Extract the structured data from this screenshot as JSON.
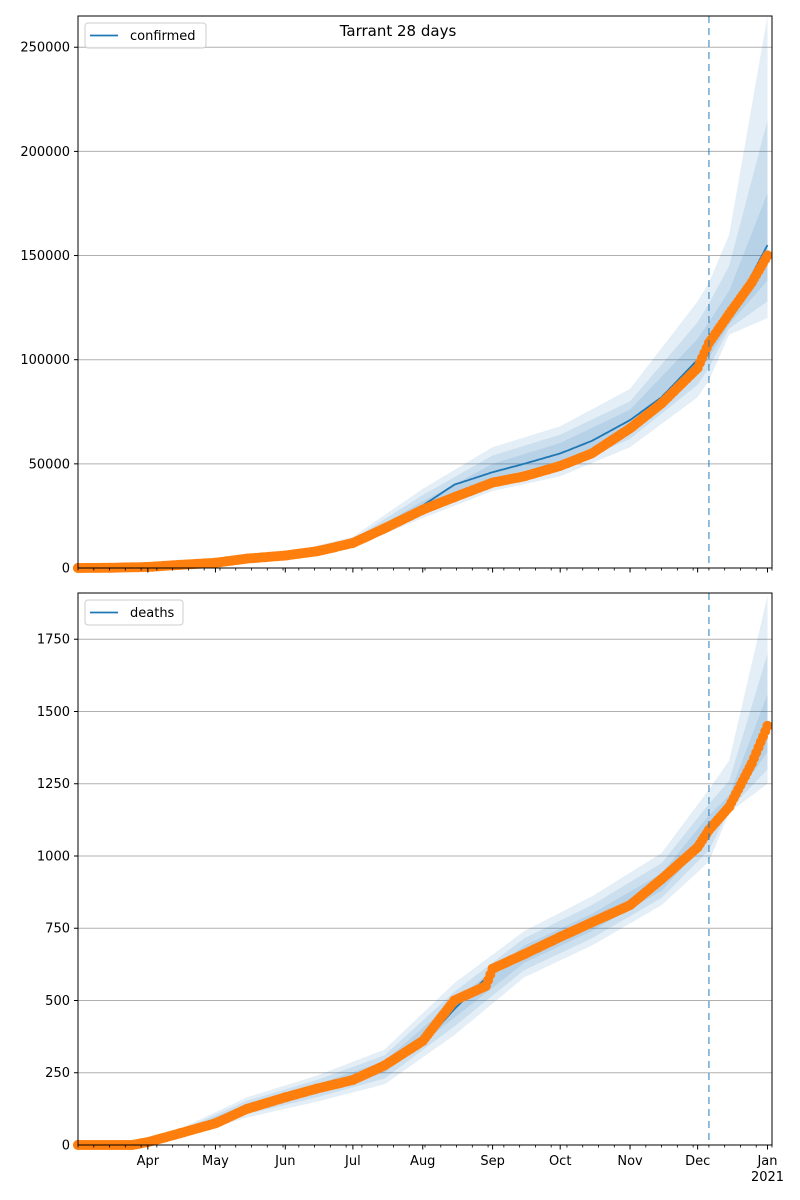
{
  "chart_data": [
    {
      "type": "line",
      "title": "Tarrant 28 days",
      "legend": {
        "placement": "top-left",
        "entries": [
          "confirmed"
        ]
      },
      "ylim": [
        0,
        265000
      ],
      "yticks": [
        0,
        50000,
        100000,
        150000,
        200000,
        250000
      ],
      "ytick_labels": [
        "0",
        "50000",
        "100000",
        "150000",
        "200000",
        "250000"
      ],
      "grid": "horizontal",
      "forecast_start": "2020-12-06",
      "series": [
        {
          "name": "confirmed",
          "role": "model-median-line",
          "color": "#1f77b4",
          "x": [
            "2020-03-01",
            "2020-04-01",
            "2020-05-01",
            "2020-06-01",
            "2020-07-01",
            "2020-07-15",
            "2020-08-01",
            "2020-08-15",
            "2020-09-01",
            "2020-09-15",
            "2020-10-01",
            "2020-10-15",
            "2020-11-01",
            "2020-11-15",
            "2020-12-01",
            "2020-12-06",
            "2020-12-15",
            "2021-01-01"
          ],
          "y": [
            0,
            500,
            2500,
            6000,
            12000,
            20000,
            30000,
            40000,
            46000,
            50000,
            55000,
            61000,
            71000,
            82000,
            100000,
            108000,
            120000,
            155000
          ]
        },
        {
          "name": "confirmed observed",
          "role": "observed-points",
          "color": "#ff7f0e",
          "x": [
            "2020-03-01",
            "2020-03-15",
            "2020-04-01",
            "2020-04-15",
            "2020-05-01",
            "2020-05-15",
            "2020-06-01",
            "2020-06-15",
            "2020-07-01",
            "2020-07-15",
            "2020-08-01",
            "2020-08-15",
            "2020-09-01",
            "2020-09-15",
            "2020-10-01",
            "2020-10-15",
            "2020-11-01",
            "2020-11-15",
            "2020-12-01",
            "2020-12-06",
            "2020-12-15",
            "2020-12-25",
            "2021-01-01"
          ],
          "y": [
            0,
            100,
            500,
            1500,
            2500,
            4500,
            6000,
            8000,
            12000,
            19000,
            28000,
            34000,
            41000,
            44000,
            49000,
            55000,
            67000,
            79000,
            96000,
            108000,
            122000,
            137000,
            150000
          ]
        }
      ],
      "bands": {
        "color": "#1f77b4",
        "x": [
          "2020-03-01",
          "2020-04-01",
          "2020-05-01",
          "2020-06-01",
          "2020-07-01",
          "2020-08-01",
          "2020-09-01",
          "2020-10-01",
          "2020-11-01",
          "2020-12-01",
          "2020-12-06",
          "2020-12-15",
          "2021-01-01"
        ],
        "median": [
          0,
          500,
          2500,
          6000,
          12000,
          30000,
          46000,
          55000,
          71000,
          100000,
          108000,
          120000,
          155000
        ],
        "levels": [
          {
            "lower": [
              0,
              400,
              2000,
              5000,
              10000,
              24000,
              37000,
              44000,
              58000,
              82000,
              90000,
              112000,
              120000
            ],
            "upper": [
              0,
              600,
              3000,
              7000,
              15000,
              38000,
              58000,
              68000,
              86000,
              128000,
              137000,
              160000,
              265000
            ]
          },
          {
            "lower": [
              0,
              430,
              2150,
              5300,
              10700,
              26000,
              40000,
              47000,
              62000,
              88000,
              96000,
              115000,
              128000
            ],
            "upper": [
              0,
              570,
              2850,
              6700,
              13800,
              35000,
              54000,
              64000,
              80000,
              118000,
              127000,
              145000,
              215000
            ]
          },
          {
            "lower": [
              0,
              460,
              2300,
              5600,
              11300,
              28000,
              43000,
              51000,
              66000,
              93000,
              101000,
              117000,
              138000
            ],
            "upper": [
              0,
              540,
              2700,
              6400,
              12900,
              32000,
              50000,
              60000,
              76000,
              110000,
              118000,
              133000,
              180000
            ]
          }
        ]
      }
    },
    {
      "type": "line",
      "legend": {
        "placement": "top-left",
        "entries": [
          "deaths"
        ]
      },
      "ylim": [
        0,
        1910
      ],
      "yticks": [
        0,
        250,
        500,
        750,
        1000,
        1250,
        1500,
        1750
      ],
      "ytick_labels": [
        "0",
        "250",
        "500",
        "750",
        "1000",
        "1250",
        "1500",
        "1750"
      ],
      "xticks": [
        "2020-04-01",
        "2020-05-01",
        "2020-06-01",
        "2020-07-01",
        "2020-08-01",
        "2020-09-01",
        "2020-10-01",
        "2020-11-01",
        "2020-12-01",
        "2021-01-01"
      ],
      "xtick_labels": [
        "Apr",
        "May",
        "Jun",
        "Jul",
        "Aug",
        "Sep",
        "Oct",
        "Nov",
        "Dec",
        "Jan"
      ],
      "xtick_year_label": "2021",
      "xlim": [
        "2020-03-01",
        "2021-01-03"
      ],
      "grid": "horizontal",
      "forecast_start": "2020-12-06",
      "series": [
        {
          "name": "deaths",
          "role": "model-median-line",
          "color": "#1f77b4",
          "x": [
            "2020-03-01",
            "2020-03-25",
            "2020-04-01",
            "2020-04-15",
            "2020-05-01",
            "2020-05-15",
            "2020-06-01",
            "2020-06-15",
            "2020-07-01",
            "2020-07-15",
            "2020-08-01",
            "2020-08-15",
            "2020-09-01",
            "2020-09-15",
            "2020-10-01",
            "2020-10-15",
            "2020-11-01",
            "2020-11-15",
            "2020-12-01",
            "2020-12-06",
            "2020-12-15",
            "2021-01-01"
          ],
          "y": [
            0,
            0,
            10,
            40,
            80,
            130,
            170,
            195,
            225,
            270,
            350,
            470,
            600,
            660,
            720,
            770,
            830,
            910,
            1020,
            1100,
            1180,
            1440
          ]
        },
        {
          "name": "deaths observed",
          "role": "observed-points",
          "color": "#ff7f0e",
          "x": [
            "2020-03-01",
            "2020-03-25",
            "2020-04-01",
            "2020-04-15",
            "2020-05-01",
            "2020-05-15",
            "2020-06-01",
            "2020-06-15",
            "2020-07-01",
            "2020-07-15",
            "2020-08-01",
            "2020-08-15",
            "2020-08-29",
            "2020-09-01",
            "2020-09-15",
            "2020-10-01",
            "2020-10-15",
            "2020-11-01",
            "2020-11-15",
            "2020-12-01",
            "2020-12-06",
            "2020-12-15",
            "2020-12-25",
            "2021-01-01"
          ],
          "y": [
            0,
            0,
            10,
            40,
            75,
            125,
            165,
            195,
            225,
            275,
            360,
            500,
            550,
            610,
            660,
            720,
            770,
            830,
            920,
            1030,
            1090,
            1170,
            1320,
            1450
          ]
        }
      ],
      "bands": {
        "color": "#1f77b4",
        "x": [
          "2020-03-01",
          "2020-03-25",
          "2020-04-15",
          "2020-05-15",
          "2020-06-15",
          "2020-07-15",
          "2020-08-15",
          "2020-09-15",
          "2020-10-15",
          "2020-11-15",
          "2020-12-06",
          "2020-12-15",
          "2021-01-01"
        ],
        "median": [
          0,
          0,
          40,
          130,
          195,
          270,
          470,
          660,
          770,
          910,
          1100,
          1180,
          1440
        ],
        "levels": [
          {
            "lower": [
              0,
              0,
              25,
              95,
              150,
              210,
              380,
              580,
              690,
              830,
              980,
              1150,
              1250
            ],
            "upper": [
              0,
              0,
              55,
              165,
              240,
              330,
              560,
              740,
              860,
              1010,
              1230,
              1330,
              1900
            ]
          },
          {
            "lower": [
              0,
              0,
              30,
              107,
              165,
              230,
              410,
              605,
              715,
              855,
              1020,
              1160,
              1300
            ],
            "upper": [
              0,
              0,
              50,
              153,
              225,
              310,
              530,
              715,
              830,
              975,
              1180,
              1260,
              1700
            ]
          },
          {
            "lower": [
              0,
              0,
              35,
              118,
              180,
              250,
              440,
              630,
              740,
              880,
              1060,
              1170,
              1360
            ],
            "upper": [
              0,
              0,
              45,
              142,
              210,
              290,
              500,
              690,
              800,
              940,
              1140,
              1210,
              1560
            ]
          }
        ]
      }
    }
  ]
}
